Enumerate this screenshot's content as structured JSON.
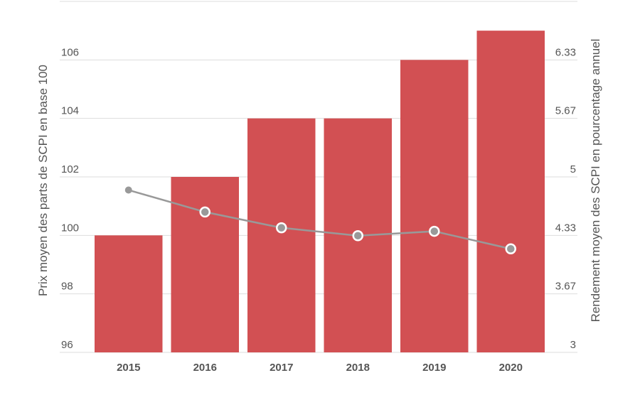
{
  "chart_data": {
    "type": "bar",
    "categories": [
      "2015",
      "2016",
      "2017",
      "2018",
      "2019",
      "2020"
    ],
    "series": [
      {
        "type": "bar",
        "axis": "left",
        "values": [
          100,
          102,
          104,
          104,
          106,
          107
        ],
        "color": "#d25053"
      },
      {
        "type": "line",
        "axis": "right",
        "values": [
          4.85,
          4.6,
          4.42,
          4.33,
          4.38,
          4.18
        ],
        "color": "#999999"
      }
    ],
    "ylabel": "Prix moyen des parts de SCPI en base 100",
    "y2label": "Rendement moyen des SCPI en pourcentage annuel",
    "ylim": [
      96,
      108
    ],
    "y2lim": [
      3,
      7
    ],
    "yticks": [
      "96",
      "98",
      "100",
      "102",
      "104",
      "106"
    ],
    "y2ticks": [
      "3",
      "3.67",
      "4.33",
      "5",
      "5.67",
      "6.33"
    ],
    "grid": true,
    "legend": "none"
  }
}
